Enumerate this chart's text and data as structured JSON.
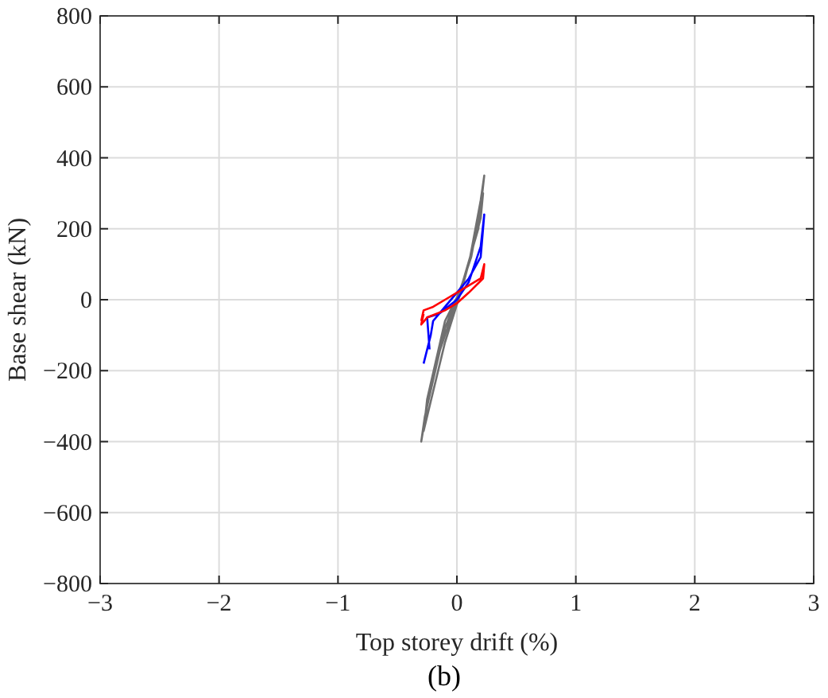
{
  "chart_data": {
    "type": "line",
    "xlabel": "Top storey drift (%)",
    "ylabel": "Base shear (kN)",
    "annotations": [
      "(b)"
    ],
    "xlim": [
      -3,
      3
    ],
    "xticks": [
      {
        "value": -3,
        "label": "−3"
      },
      {
        "value": -2,
        "label": "−2"
      },
      {
        "value": -1,
        "label": "−1"
      },
      0,
      1,
      2,
      3
    ],
    "ylim": [
      -800,
      800
    ],
    "yticks": [
      {
        "value": -800,
        "label": "−800"
      },
      {
        "value": -600,
        "label": "−600"
      },
      {
        "value": -400,
        "label": "−400"
      },
      {
        "value": -200,
        "label": "−200"
      },
      0,
      200,
      400,
      600,
      800
    ],
    "grid": true,
    "marker": "none",
    "line_style": "solid",
    "series": [
      {
        "color": "#707070",
        "x": [
          0,
          0.1,
          0.2,
          0.23,
          0.18,
          0.05,
          -0.1,
          -0.25,
          -0.3,
          -0.27,
          -0.15,
          0,
          0.12,
          0.22,
          0.2,
          0.05,
          -0.1,
          -0.28,
          -0.25,
          -0.1,
          0.05
        ],
        "values": [
          0,
          100,
          280,
          350,
          200,
          50,
          -80,
          -300,
          -400,
          -330,
          -150,
          0,
          120,
          300,
          230,
          40,
          -120,
          -370,
          -280,
          -60,
          40
        ]
      },
      {
        "color": "#0000ff",
        "x": [
          -0.28,
          -0.22,
          -0.2,
          -0.1,
          0,
          0.1,
          0.2,
          0.22,
          0.23,
          0.2,
          0.1,
          0,
          -0.15,
          -0.25,
          -0.23
        ],
        "values": [
          -180,
          -100,
          -60,
          -20,
          20,
          60,
          120,
          200,
          240,
          150,
          50,
          0,
          -40,
          -50,
          -140
        ]
      },
      {
        "color": "#ff0000",
        "x": [
          -0.3,
          -0.28,
          -0.2,
          -0.1,
          0,
          0.1,
          0.2,
          0.23,
          0.22,
          0.1,
          0,
          -0.1,
          -0.25,
          -0.3,
          -0.28
        ],
        "values": [
          -60,
          -30,
          -20,
          0,
          20,
          40,
          60,
          100,
          60,
          20,
          -10,
          -30,
          -50,
          -70,
          -40
        ]
      }
    ]
  }
}
